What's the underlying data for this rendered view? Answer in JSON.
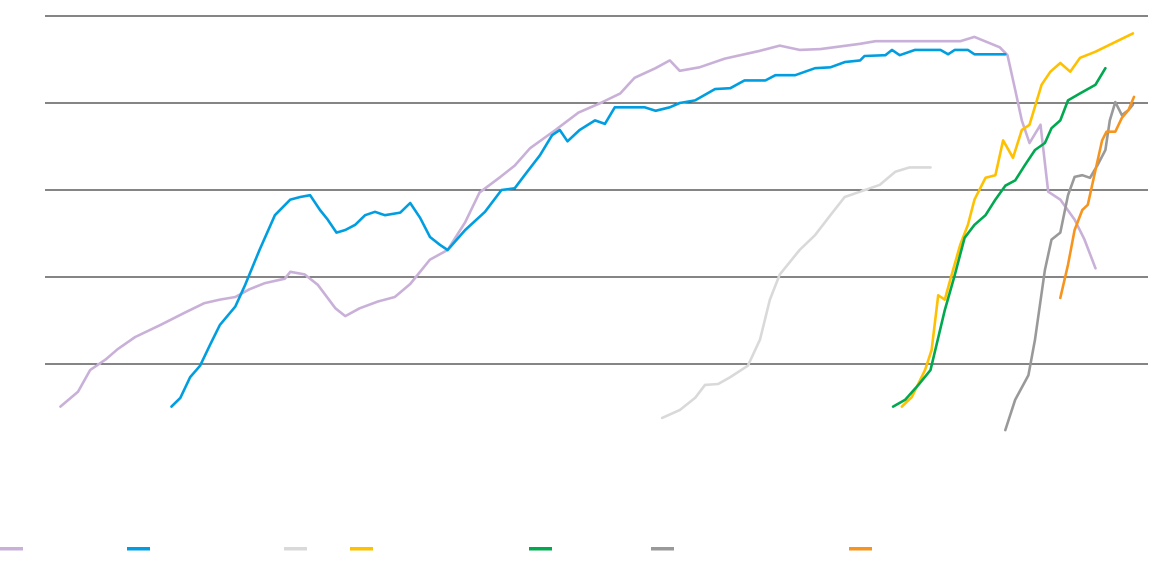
{
  "chart_data": {
    "type": "line",
    "title": "",
    "xlabel": "",
    "ylabel": "",
    "xlim": [
      0,
      100
    ],
    "ylim": [
      0,
      5
    ],
    "grid": true,
    "gridlines_y": [
      1,
      2,
      3,
      4,
      5
    ],
    "legend_placement": "bottom",
    "series": [
      {
        "color": "#c9b0d8",
        "points": [
          [
            1.4,
            0.51
          ],
          [
            3.0,
            0.68
          ],
          [
            4.1,
            0.93
          ],
          [
            5.5,
            1.05
          ],
          [
            6.6,
            1.17
          ],
          [
            8.2,
            1.31
          ],
          [
            10.5,
            1.45
          ],
          [
            12.7,
            1.59
          ],
          [
            14.5,
            1.7
          ],
          [
            15.9,
            1.74
          ],
          [
            17.3,
            1.77
          ],
          [
            18.6,
            1.86
          ],
          [
            20.0,
            1.93
          ],
          [
            21.8,
            1.98
          ],
          [
            22.3,
            2.06
          ],
          [
            23.6,
            2.03
          ],
          [
            24.8,
            1.91
          ],
          [
            26.4,
            1.64
          ],
          [
            27.3,
            1.55
          ],
          [
            28.6,
            1.64
          ],
          [
            30.3,
            1.72
          ],
          [
            31.8,
            1.77
          ],
          [
            33.2,
            1.92
          ],
          [
            35.0,
            2.2
          ],
          [
            36.6,
            2.31
          ],
          [
            38.2,
            2.63
          ],
          [
            39.5,
            2.97
          ],
          [
            41.4,
            3.15
          ],
          [
            42.7,
            3.28
          ],
          [
            44.1,
            3.48
          ],
          [
            46.4,
            3.69
          ],
          [
            48.5,
            3.89
          ],
          [
            50.5,
            4.0
          ],
          [
            52.3,
            4.11
          ],
          [
            53.6,
            4.29
          ],
          [
            55.5,
            4.4
          ],
          [
            56.8,
            4.49
          ],
          [
            57.7,
            4.37
          ],
          [
            59.5,
            4.41
          ],
          [
            61.8,
            4.51
          ],
          [
            65.0,
            4.6
          ],
          [
            66.8,
            4.66
          ],
          [
            68.6,
            4.61
          ],
          [
            70.5,
            4.62
          ],
          [
            74.1,
            4.68
          ],
          [
            75.5,
            4.71
          ],
          [
            83.2,
            4.71
          ],
          [
            84.5,
            4.76
          ],
          [
            86.8,
            4.64
          ],
          [
            87.5,
            4.55
          ],
          [
            88.2,
            4.15
          ],
          [
            88.8,
            3.8
          ],
          [
            89.5,
            3.54
          ],
          [
            90.5,
            3.75
          ],
          [
            91.2,
            2.98
          ],
          [
            92.3,
            2.89
          ],
          [
            93.6,
            2.66
          ],
          [
            94.5,
            2.43
          ],
          [
            95.5,
            2.1
          ]
        ]
      },
      {
        "color": "#009ee0",
        "points": [
          [
            11.5,
            0.51
          ],
          [
            12.3,
            0.61
          ],
          [
            13.2,
            0.85
          ],
          [
            14.1,
            0.98
          ],
          [
            15.0,
            1.22
          ],
          [
            15.9,
            1.45
          ],
          [
            17.3,
            1.66
          ],
          [
            18.2,
            1.91
          ],
          [
            19.5,
            2.31
          ],
          [
            20.9,
            2.71
          ],
          [
            22.3,
            2.89
          ],
          [
            23.2,
            2.92
          ],
          [
            24.1,
            2.94
          ],
          [
            25.0,
            2.77
          ],
          [
            25.7,
            2.66
          ],
          [
            26.5,
            2.51
          ],
          [
            27.3,
            2.54
          ],
          [
            28.2,
            2.6
          ],
          [
            29.1,
            2.71
          ],
          [
            30.0,
            2.75
          ],
          [
            30.9,
            2.71
          ],
          [
            32.3,
            2.74
          ],
          [
            33.2,
            2.85
          ],
          [
            34.1,
            2.68
          ],
          [
            35.0,
            2.46
          ],
          [
            35.9,
            2.37
          ],
          [
            36.6,
            2.31
          ],
          [
            38.2,
            2.54
          ],
          [
            40.0,
            2.75
          ],
          [
            41.5,
            3.0
          ],
          [
            42.7,
            3.02
          ],
          [
            43.6,
            3.17
          ],
          [
            45.0,
            3.4
          ],
          [
            46.1,
            3.63
          ],
          [
            46.8,
            3.69
          ],
          [
            47.5,
            3.56
          ],
          [
            48.6,
            3.69
          ],
          [
            50.0,
            3.8
          ],
          [
            50.9,
            3.76
          ],
          [
            51.8,
            3.95
          ],
          [
            54.5,
            3.95
          ],
          [
            55.5,
            3.91
          ],
          [
            56.8,
            3.95
          ],
          [
            57.7,
            4.0
          ],
          [
            59.1,
            4.03
          ],
          [
            60.9,
            4.16
          ],
          [
            62.3,
            4.17
          ],
          [
            63.6,
            4.26
          ],
          [
            65.5,
            4.26
          ],
          [
            66.4,
            4.32
          ],
          [
            68.2,
            4.32
          ],
          [
            70.0,
            4.4
          ],
          [
            71.4,
            4.41
          ],
          [
            72.7,
            4.47
          ],
          [
            74.1,
            4.49
          ],
          [
            74.5,
            4.54
          ],
          [
            76.4,
            4.55
          ],
          [
            77.0,
            4.61
          ],
          [
            77.7,
            4.55
          ],
          [
            79.1,
            4.61
          ],
          [
            81.4,
            4.61
          ],
          [
            82.1,
            4.56
          ],
          [
            82.7,
            4.61
          ],
          [
            83.9,
            4.61
          ],
          [
            84.5,
            4.56
          ],
          [
            87.3,
            4.56
          ]
        ]
      },
      {
        "color": "#d9d9d9",
        "points": [
          [
            56.1,
            0.38
          ],
          [
            57.7,
            0.47
          ],
          [
            59.1,
            0.61
          ],
          [
            60.0,
            0.76
          ],
          [
            61.2,
            0.77
          ],
          [
            62.3,
            0.85
          ],
          [
            63.9,
            0.98
          ],
          [
            65.0,
            1.28
          ],
          [
            65.9,
            1.74
          ],
          [
            66.8,
            2.03
          ],
          [
            68.6,
            2.31
          ],
          [
            70.0,
            2.48
          ],
          [
            71.4,
            2.71
          ],
          [
            72.7,
            2.92
          ],
          [
            74.1,
            2.98
          ],
          [
            75.9,
            3.06
          ],
          [
            77.3,
            3.21
          ],
          [
            78.6,
            3.26
          ],
          [
            80.5,
            3.26
          ]
        ]
      },
      {
        "color": "#ffc000",
        "points": [
          [
            77.9,
            0.51
          ],
          [
            78.8,
            0.62
          ],
          [
            80.0,
            0.93
          ],
          [
            80.6,
            1.16
          ],
          [
            81.2,
            1.79
          ],
          [
            81.8,
            1.74
          ],
          [
            82.3,
            1.97
          ],
          [
            83.2,
            2.37
          ],
          [
            83.9,
            2.6
          ],
          [
            84.5,
            2.89
          ],
          [
            85.5,
            3.14
          ],
          [
            86.4,
            3.17
          ],
          [
            87.1,
            3.57
          ],
          [
            88.0,
            3.37
          ],
          [
            88.8,
            3.69
          ],
          [
            89.5,
            3.75
          ],
          [
            90.6,
            4.21
          ],
          [
            91.4,
            4.36
          ],
          [
            92.3,
            4.46
          ],
          [
            93.2,
            4.36
          ],
          [
            94.1,
            4.52
          ],
          [
            95.5,
            4.59
          ],
          [
            96.8,
            4.67
          ],
          [
            98.9,
            4.8
          ]
        ]
      },
      {
        "color": "#00a84f",
        "points": [
          [
            77.1,
            0.51
          ],
          [
            78.2,
            0.59
          ],
          [
            79.4,
            0.76
          ],
          [
            80.5,
            0.93
          ],
          [
            81.8,
            1.62
          ],
          [
            82.7,
            2.02
          ],
          [
            83.6,
            2.45
          ],
          [
            84.5,
            2.6
          ],
          [
            85.5,
            2.71
          ],
          [
            86.4,
            2.89
          ],
          [
            87.3,
            3.05
          ],
          [
            88.2,
            3.11
          ],
          [
            89.1,
            3.29
          ],
          [
            90.0,
            3.46
          ],
          [
            90.9,
            3.54
          ],
          [
            91.5,
            3.71
          ],
          [
            92.3,
            3.8
          ],
          [
            93.0,
            4.03
          ],
          [
            94.1,
            4.11
          ],
          [
            95.5,
            4.21
          ],
          [
            96.4,
            4.4
          ]
        ]
      },
      {
        "color": "#999999",
        "points": [
          [
            87.3,
            0.24
          ],
          [
            88.2,
            0.59
          ],
          [
            89.4,
            0.87
          ],
          [
            90.0,
            1.28
          ],
          [
            90.9,
            2.08
          ],
          [
            91.5,
            2.43
          ],
          [
            92.3,
            2.51
          ],
          [
            93.0,
            2.94
          ],
          [
            93.6,
            3.15
          ],
          [
            94.3,
            3.17
          ],
          [
            95.0,
            3.14
          ],
          [
            95.7,
            3.29
          ],
          [
            96.4,
            3.46
          ],
          [
            96.8,
            3.8
          ],
          [
            97.3,
            4.01
          ],
          [
            97.9,
            3.86
          ],
          [
            98.5,
            3.92
          ],
          [
            98.9,
            3.98
          ]
        ]
      },
      {
        "color": "#f7941d",
        "points": [
          [
            92.3,
            1.76
          ],
          [
            93.0,
            2.14
          ],
          [
            93.6,
            2.54
          ],
          [
            94.3,
            2.77
          ],
          [
            94.8,
            2.83
          ],
          [
            95.5,
            3.23
          ],
          [
            96.1,
            3.57
          ],
          [
            96.5,
            3.67
          ],
          [
            97.3,
            3.67
          ],
          [
            97.9,
            3.83
          ],
          [
            98.5,
            3.92
          ],
          [
            99.0,
            4.07
          ]
        ]
      }
    ]
  }
}
